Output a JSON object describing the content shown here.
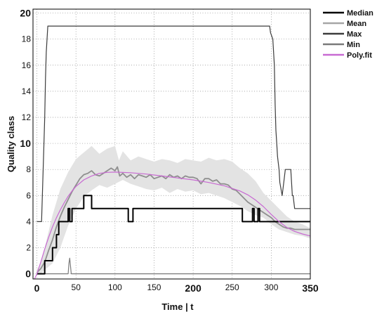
{
  "chart_data": {
    "type": "line",
    "title": "",
    "xlabel": "Time | t",
    "ylabel": "Quality class",
    "xlim": [
      -5,
      350
    ],
    "ylim": [
      -0.4,
      20.3
    ],
    "grid": true,
    "grid_style": "dotted",
    "legend_position": "top-right outside",
    "x_ticks": [
      {
        "v": 0,
        "label": "0",
        "size": "large"
      },
      {
        "v": 50,
        "label": "50",
        "size": "small"
      },
      {
        "v": 100,
        "label": "100",
        "size": "small"
      },
      {
        "v": 150,
        "label": "150",
        "size": "small"
      },
      {
        "v": 200,
        "label": "200",
        "size": "large"
      },
      {
        "v": 250,
        "label": "250",
        "size": "small"
      },
      {
        "v": 300,
        "label": "300",
        "size": "small"
      },
      {
        "v": 350,
        "label": "350",
        "size": "large"
      }
    ],
    "y_ticks": [
      {
        "v": 0,
        "label": "0",
        "size": "large"
      },
      {
        "v": 2,
        "label": "2",
        "size": "small"
      },
      {
        "v": 4,
        "label": "4",
        "size": "small"
      },
      {
        "v": 6,
        "label": "6",
        "size": "small"
      },
      {
        "v": 8,
        "label": "8",
        "size": "small"
      },
      {
        "v": 10,
        "label": "10",
        "size": "large"
      },
      {
        "v": 12,
        "label": "12",
        "size": "small"
      },
      {
        "v": 14,
        "label": "14",
        "size": "small"
      },
      {
        "v": 16,
        "label": "16",
        "size": "small"
      },
      {
        "v": 18,
        "label": "18",
        "size": "small"
      },
      {
        "v": 20,
        "label": "20",
        "size": "large"
      }
    ],
    "band": {
      "color": "#e3e3e3",
      "upper": [
        [
          0,
          0.3
        ],
        [
          5,
          0.8
        ],
        [
          10,
          2
        ],
        [
          20,
          4.5
        ],
        [
          30,
          6.5
        ],
        [
          40,
          7.8
        ],
        [
          50,
          8.8
        ],
        [
          60,
          9.3
        ],
        [
          70,
          9.8
        ],
        [
          80,
          9.2
        ],
        [
          90,
          9.6
        ],
        [
          100,
          9.8
        ],
        [
          105,
          8.7
        ],
        [
          110,
          9.4
        ],
        [
          120,
          8.7
        ],
        [
          130,
          9.0
        ],
        [
          140,
          8.8
        ],
        [
          150,
          8.6
        ],
        [
          160,
          8.8
        ],
        [
          170,
          8.7
        ],
        [
          180,
          8.5
        ],
        [
          190,
          8.8
        ],
        [
          200,
          8.7
        ],
        [
          210,
          8.6
        ],
        [
          220,
          8.9
        ],
        [
          230,
          8.7
        ],
        [
          240,
          8.8
        ],
        [
          250,
          8.6
        ],
        [
          260,
          8.1
        ],
        [
          270,
          7.7
        ],
        [
          280,
          7.1
        ],
        [
          290,
          6.2
        ],
        [
          300,
          5.6
        ],
        [
          310,
          5.0
        ],
        [
          320,
          4.4
        ],
        [
          330,
          4.0
        ],
        [
          340,
          3.8
        ],
        [
          350,
          3.5
        ]
      ],
      "lower": [
        [
          0,
          0
        ],
        [
          5,
          0
        ],
        [
          10,
          0.3
        ],
        [
          20,
          0.8
        ],
        [
          30,
          2.0
        ],
        [
          40,
          3.7
        ],
        [
          50,
          5.0
        ],
        [
          60,
          5.9
        ],
        [
          70,
          6.4
        ],
        [
          80,
          6.8
        ],
        [
          90,
          6.6
        ],
        [
          100,
          6.9
        ],
        [
          110,
          7.2
        ],
        [
          120,
          6.9
        ],
        [
          130,
          6.7
        ],
        [
          140,
          6.5
        ],
        [
          150,
          6.4
        ],
        [
          160,
          6.6
        ],
        [
          170,
          6.2
        ],
        [
          180,
          6.5
        ],
        [
          190,
          6.3
        ],
        [
          200,
          6.4
        ],
        [
          210,
          6.1
        ],
        [
          220,
          6.2
        ],
        [
          230,
          6.0
        ],
        [
          240,
          5.8
        ],
        [
          250,
          5.5
        ],
        [
          260,
          5.2
        ],
        [
          270,
          4.8
        ],
        [
          280,
          4.5
        ],
        [
          290,
          4.3
        ],
        [
          300,
          3.8
        ],
        [
          310,
          3.4
        ],
        [
          320,
          3.2
        ],
        [
          330,
          3.0
        ],
        [
          340,
          2.9
        ],
        [
          350,
          2.7
        ]
      ]
    },
    "series": [
      {
        "name": "Max",
        "color": "#3c3c3c",
        "width": 1.2,
        "points": [
          [
            0,
            4
          ],
          [
            6,
            4
          ],
          [
            9,
            10
          ],
          [
            10,
            12
          ],
          [
            11,
            15
          ],
          [
            12,
            17
          ],
          [
            13,
            18
          ],
          [
            14,
            19
          ],
          [
            298,
            19
          ],
          [
            299,
            18.5
          ],
          [
            302,
            18
          ],
          [
            304,
            16
          ],
          [
            305,
            13
          ],
          [
            306,
            11
          ],
          [
            307,
            10
          ],
          [
            308,
            9
          ],
          [
            309,
            8.5
          ],
          [
            310,
            8
          ],
          [
            311,
            7
          ],
          [
            314,
            6
          ],
          [
            316,
            7
          ],
          [
            318,
            8
          ],
          [
            325,
            8
          ],
          [
            326,
            7
          ],
          [
            327,
            6
          ],
          [
            328,
            6
          ],
          [
            330,
            5
          ],
          [
            350,
            5
          ]
        ]
      },
      {
        "name": "Min",
        "color": "#7a7a7a",
        "width": 1.2,
        "points": [
          [
            0,
            0
          ],
          [
            40,
            0
          ],
          [
            41,
            0.8
          ],
          [
            42,
            1.2
          ],
          [
            43,
            0.6
          ],
          [
            44,
            0
          ],
          [
            350,
            0
          ]
        ]
      },
      {
        "name": "Mean",
        "color": "#8f8f8f",
        "width": 1.8,
        "points": [
          [
            0,
            0.1
          ],
          [
            5,
            0.4
          ],
          [
            10,
            0.9
          ],
          [
            15,
            1.8
          ],
          [
            20,
            2.6
          ],
          [
            25,
            3.6
          ],
          [
            30,
            4.4
          ],
          [
            35,
            5.1
          ],
          [
            40,
            5.7
          ],
          [
            45,
            6.3
          ],
          [
            50,
            6.8
          ],
          [
            55,
            7.3
          ],
          [
            60,
            7.6
          ],
          [
            65,
            7.7
          ],
          [
            70,
            7.9
          ],
          [
            75,
            7.6
          ],
          [
            80,
            7.5
          ],
          [
            85,
            7.7
          ],
          [
            90,
            7.9
          ],
          [
            95,
            8.1
          ],
          [
            100,
            7.9
          ],
          [
            103,
            8.2
          ],
          [
            106,
            7.5
          ],
          [
            110,
            7.7
          ],
          [
            115,
            7.4
          ],
          [
            120,
            7.6
          ],
          [
            125,
            7.3
          ],
          [
            130,
            7.6
          ],
          [
            135,
            7.5
          ],
          [
            140,
            7.4
          ],
          [
            145,
            7.6
          ],
          [
            150,
            7.3
          ],
          [
            155,
            7.4
          ],
          [
            160,
            7.5
          ],
          [
            165,
            7.3
          ],
          [
            170,
            7.6
          ],
          [
            175,
            7.4
          ],
          [
            180,
            7.5
          ],
          [
            185,
            7.3
          ],
          [
            190,
            7.5
          ],
          [
            195,
            7.4
          ],
          [
            200,
            7.4
          ],
          [
            205,
            7.3
          ],
          [
            210,
            6.9
          ],
          [
            215,
            7.3
          ],
          [
            220,
            7.3
          ],
          [
            225,
            7.1
          ],
          [
            230,
            7.2
          ],
          [
            235,
            6.9
          ],
          [
            240,
            6.9
          ],
          [
            245,
            6.8
          ],
          [
            250,
            6.5
          ],
          [
            255,
            6.4
          ],
          [
            260,
            6.1
          ],
          [
            265,
            5.8
          ],
          [
            270,
            5.5
          ],
          [
            275,
            5.3
          ],
          [
            280,
            5.1
          ],
          [
            285,
            4.9
          ],
          [
            290,
            4.7
          ],
          [
            295,
            4.5
          ],
          [
            300,
            4.3
          ],
          [
            305,
            4.0
          ],
          [
            310,
            3.8
          ],
          [
            315,
            3.6
          ],
          [
            320,
            3.5
          ],
          [
            325,
            3.5
          ],
          [
            330,
            3.4
          ],
          [
            340,
            3.4
          ],
          [
            350,
            3.4
          ]
        ]
      },
      {
        "name": "Median",
        "color": "#000000",
        "width": 2,
        "points": [
          [
            0,
            0
          ],
          [
            10,
            0
          ],
          [
            10,
            1
          ],
          [
            20,
            1
          ],
          [
            20,
            2
          ],
          [
            25,
            2
          ],
          [
            25,
            3
          ],
          [
            28,
            3
          ],
          [
            28,
            4
          ],
          [
            40,
            4
          ],
          [
            40,
            5
          ],
          [
            42,
            5
          ],
          [
            42,
            4
          ],
          [
            45,
            4
          ],
          [
            45,
            5
          ],
          [
            60,
            5
          ],
          [
            60,
            6
          ],
          [
            70,
            6
          ],
          [
            70,
            5
          ],
          [
            117,
            5
          ],
          [
            117,
            4
          ],
          [
            123,
            4
          ],
          [
            123,
            5
          ],
          [
            263,
            5
          ],
          [
            263,
            4
          ],
          [
            276,
            4
          ],
          [
            276,
            5
          ],
          [
            278,
            5
          ],
          [
            278,
            4
          ],
          [
            283,
            4
          ],
          [
            283,
            5
          ],
          [
            285,
            5
          ],
          [
            285,
            4
          ],
          [
            350,
            4
          ]
        ]
      },
      {
        "name": "Poly.fit",
        "color": "#c86ad2",
        "width": 1.2,
        "points": [
          [
            -3,
            -0.4
          ],
          [
            0,
            0
          ],
          [
            5,
            0.9
          ],
          [
            10,
            1.9
          ],
          [
            15,
            2.8
          ],
          [
            20,
            3.6
          ],
          [
            25,
            4.3
          ],
          [
            30,
            4.9
          ],
          [
            35,
            5.45
          ],
          [
            40,
            5.95
          ],
          [
            45,
            6.35
          ],
          [
            50,
            6.7
          ],
          [
            60,
            7.2
          ],
          [
            70,
            7.5
          ],
          [
            80,
            7.7
          ],
          [
            90,
            7.78
          ],
          [
            100,
            7.8
          ],
          [
            120,
            7.75
          ],
          [
            140,
            7.65
          ],
          [
            160,
            7.5
          ],
          [
            180,
            7.35
          ],
          [
            200,
            7.2
          ],
          [
            220,
            7.0
          ],
          [
            240,
            6.75
          ],
          [
            260,
            6.35
          ],
          [
            270,
            6.05
          ],
          [
            280,
            5.65
          ],
          [
            290,
            5.15
          ],
          [
            300,
            4.55
          ],
          [
            310,
            4.0
          ],
          [
            320,
            3.55
          ],
          [
            330,
            3.25
          ],
          [
            340,
            3.05
          ],
          [
            350,
            2.9
          ]
        ]
      }
    ],
    "legend": [
      {
        "label": "Median",
        "color": "#000000",
        "width": 2.5
      },
      {
        "label": "Mean",
        "color": "#a6a6a6",
        "width": 2.5
      },
      {
        "label": "Max",
        "color": "#3c3c3c",
        "width": 2.5
      },
      {
        "label": "Min",
        "color": "#7a7a7a",
        "width": 2.5
      },
      {
        "label": "Poly.fit",
        "color": "#c86ad2",
        "width": 2.5
      }
    ]
  }
}
